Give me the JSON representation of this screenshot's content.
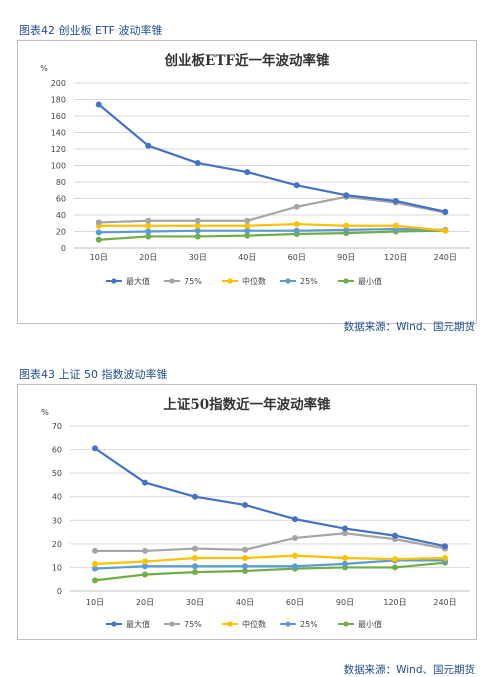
{
  "figures": [
    {
      "caption": "图表42 创业板 ETF 波动率锥",
      "source": "数据来源：Wind、国元期货",
      "unit": "%",
      "legend_labels": [
        "最大值",
        "75%",
        "中位数",
        "25%",
        "最小值"
      ]
    },
    {
      "caption": "图表43 上证 50 指数波动率锥",
      "source": "数据来源：Wind、国元期货",
      "unit": "%",
      "legend_labels": [
        "最大值",
        "75%",
        "中位数",
        "25%",
        "最小值"
      ]
    }
  ],
  "chart_data": [
    {
      "type": "line",
      "title": "创业板ETF近一年波动率锥",
      "unit": "%",
      "categories": [
        "10日",
        "20日",
        "30日",
        "40日",
        "60日",
        "90日",
        "120日",
        "240日"
      ],
      "ylim": [
        0,
        200
      ],
      "yticks": [
        "0",
        "20",
        "40",
        "60",
        "80",
        "100",
        "120",
        "140",
        "160",
        "180",
        "200"
      ],
      "grid": true,
      "legend": "bottom",
      "series": [
        {
          "name": "最大值",
          "color": "#4472c4",
          "values": [
            174,
            124,
            103,
            92,
            76,
            64,
            57,
            44
          ]
        },
        {
          "name": "75%",
          "color": "#a5a5a5",
          "values": [
            31,
            33,
            33,
            33,
            50,
            62,
            55,
            43
          ]
        },
        {
          "name": "中位数",
          "color": "#ffc000",
          "values": [
            27,
            27,
            27,
            27,
            29,
            27,
            27,
            21
          ]
        },
        {
          "name": "25%",
          "color": "#5b9bd5",
          "values": [
            19,
            20,
            21,
            21,
            21,
            22,
            23,
            22
          ]
        },
        {
          "name": "最小值",
          "color": "#70ad47",
          "values": [
            10,
            14,
            14,
            15,
            17,
            18,
            20,
            21
          ]
        }
      ]
    },
    {
      "type": "line",
      "title": "上证50指数近一年波动率锥",
      "unit": "%",
      "categories": [
        "10日",
        "20日",
        "30日",
        "40日",
        "60日",
        "90日",
        "120日",
        "240日"
      ],
      "ylim": [
        0,
        70
      ],
      "yticks": [
        "0",
        "10",
        "20",
        "30",
        "40",
        "50",
        "60",
        "70"
      ],
      "grid": true,
      "legend": "bottom",
      "series": [
        {
          "name": "最大值",
          "color": "#4472c4",
          "values": [
            60.5,
            46,
            40,
            36.5,
            30.5,
            26.5,
            23.5,
            19
          ]
        },
        {
          "name": "75%",
          "color": "#a5a5a5",
          "values": [
            17,
            17,
            18,
            17.5,
            22.5,
            24.5,
            22,
            18
          ]
        },
        {
          "name": "中位数",
          "color": "#ffc000",
          "values": [
            11.5,
            12.5,
            14,
            14,
            15,
            14,
            13.5,
            14
          ]
        },
        {
          "name": "25%",
          "color": "#5b9bd5",
          "values": [
            9.5,
            10.5,
            10.5,
            10.5,
            10.5,
            11.5,
            13,
            13
          ]
        },
        {
          "name": "最小值",
          "color": "#70ad47",
          "values": [
            4.5,
            7,
            8,
            8.5,
            9.5,
            10,
            10,
            12
          ]
        }
      ]
    }
  ]
}
